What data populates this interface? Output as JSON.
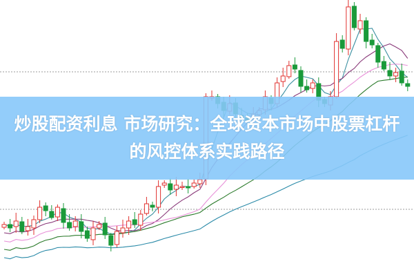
{
  "title": "炒股配资利息 市场研究：全球资本市场中股票杠杆的风控体系实践路径",
  "chart_data": {
    "type": "candlestick",
    "closes": [
      76,
      71,
      81,
      66,
      73,
      83,
      101,
      96,
      86,
      101,
      79,
      71,
      81,
      66,
      56,
      71,
      76,
      61,
      46,
      66,
      71,
      81,
      76,
      91,
      106,
      101,
      131,
      136,
      126,
      133,
      131,
      129,
      136,
      141,
      261,
      261,
      251,
      241,
      251,
      236,
      231,
      226,
      236,
      241,
      261,
      251,
      281,
      291,
      306,
      301,
      276,
      271,
      281,
      256,
      251,
      261,
      341,
      331,
      391,
      361,
      371,
      341,
      336,
      311,
      301,
      291,
      296,
      281,
      276
    ],
    "moving_averages": [
      5,
      10,
      20,
      30,
      60
    ],
    "reference_lines": "dotted",
    "colors": {
      "up": "#e0302e",
      "down": "#1a9a3a",
      "ma5": "#3a8fa0",
      "ma10": "#8a3a7a",
      "ma20": "#e890d8",
      "ma30": "#2a7a2a",
      "ma60": "#2a8aa8",
      "banner": "#87c8fa"
    }
  }
}
